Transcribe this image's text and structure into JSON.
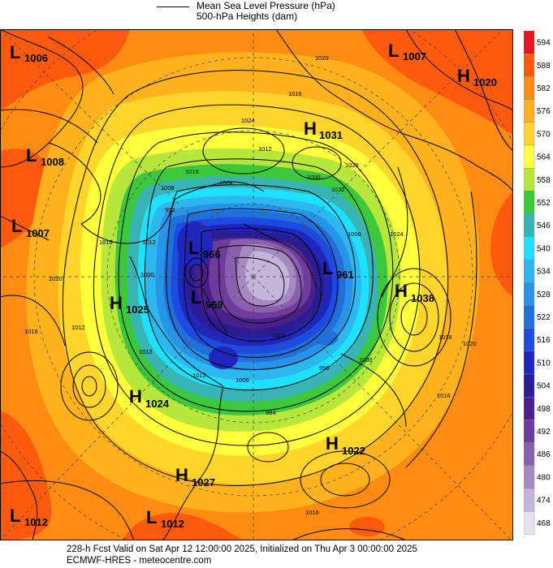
{
  "legend": {
    "line1": "Mean Sea Level Pressure (hPa)",
    "line2": "500-hPa Heights (dam)"
  },
  "colorbar": {
    "levels": [
      "594",
      "588",
      "582",
      "576",
      "570",
      "564",
      "558",
      "552",
      "546",
      "540",
      "534",
      "528",
      "522",
      "516",
      "510",
      "504",
      "498",
      "492",
      "486",
      "480",
      "474",
      "468"
    ],
    "colors": [
      "#e8141e",
      "#fd5a0d",
      "#ff8c12",
      "#ffb21b",
      "#ffd52c",
      "#ffff3c",
      "#b6e73a",
      "#3cc83c",
      "#38b4b4",
      "#1ee1ff",
      "#2db7ef",
      "#2894e8",
      "#216fd9",
      "#1d4be1",
      "#1f25bd",
      "#2a1c92",
      "#4a1e8b",
      "#6f3c9b",
      "#8a60ae",
      "#a689c3",
      "#c6b5db",
      "#e8e2f0"
    ]
  },
  "pressure_centers": [
    {
      "type": "L",
      "value": "1006"
    },
    {
      "type": "L",
      "value": "1007"
    },
    {
      "type": "H",
      "value": "1020"
    },
    {
      "type": "H",
      "value": "1031"
    },
    {
      "type": "L",
      "value": "1008"
    },
    {
      "type": "L",
      "value": "1007"
    },
    {
      "type": "L",
      "value": "966"
    },
    {
      "type": "L",
      "value": "961"
    },
    {
      "type": "H",
      "value": "1038"
    },
    {
      "type": "H",
      "value": "1025"
    },
    {
      "type": "L",
      "value": "969"
    },
    {
      "type": "H",
      "value": "1024"
    },
    {
      "type": "H",
      "value": "1022"
    },
    {
      "type": "H",
      "value": "1027"
    },
    {
      "type": "L",
      "value": "1012"
    },
    {
      "type": "L",
      "value": "1012"
    }
  ],
  "isobar_labels": [
    "1016",
    "1020",
    "1024",
    "1012",
    "1016",
    "1008",
    "1004",
    "1000",
    "992",
    "1028",
    "1032",
    "1016",
    "1012",
    "1008",
    "1000",
    "1024",
    "1020",
    "1016",
    "1012",
    "1004",
    "1016",
    "1012",
    "1016",
    "1012",
    "1008",
    "1000",
    "996",
    "984",
    "1020",
    "1016"
  ],
  "footer": {
    "line1": "228-h Fcst Valid on Sat Apr 12 12:00:00 2025, Initialized on Thu Apr  3 00:00:00 2025",
    "line2": "ECMWF-HRES  - meteocentre.com"
  }
}
